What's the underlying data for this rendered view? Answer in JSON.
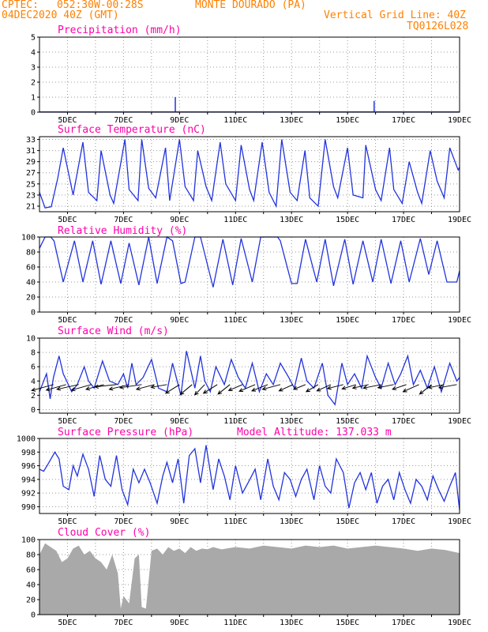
{
  "header": {
    "source": "CPTEC:",
    "coords": "052:30W-00:28S",
    "location": "MONTE DOURADO (PA)",
    "date": "04DEC2020 40Z (GMT)",
    "grid_note": "Vertical Grid Line: 40Z",
    "code": "TQ0126L028"
  },
  "colors": {
    "header": "#ff8000",
    "title": "#ff00aa",
    "line": "#2233dd",
    "cloud": "#a9a9a9",
    "wind_arrow": "#000000"
  },
  "x_labels": [
    "5DEC",
    "7DEC",
    "9DEC",
    "11DEC",
    "13DEC",
    "15DEC",
    "17DEC",
    "19DEC"
  ],
  "chart_data": [
    {
      "type": "bar",
      "title": "Precipitation (mm/h)",
      "ylim": [
        0,
        5
      ],
      "yticks": [
        0,
        1,
        2,
        3,
        4,
        5
      ],
      "grid": true,
      "spikes": [
        {
          "day": 5.45,
          "value": 0.05
        },
        {
          "day": 7.9,
          "value": 0.03
        },
        {
          "day": 8.85,
          "value": 1.0
        },
        {
          "day": 10.2,
          "value": 0.03
        },
        {
          "day": 12.9,
          "value": 0.04
        },
        {
          "day": 15.95,
          "value": 0.75
        },
        {
          "day": 16.6,
          "value": 0.03
        }
      ]
    },
    {
      "type": "line",
      "title": "Surface Temperature (nC)",
      "ylim": [
        20,
        33.5
      ],
      "yticks": [
        21,
        23,
        25,
        27,
        29,
        31,
        33
      ],
      "grid": true,
      "series": [
        {
          "x": [
            4.0,
            4.2,
            4.42,
            4.65,
            4.85,
            5.2,
            5.55,
            5.75,
            6.05,
            6.2,
            6.52,
            6.65,
            7.05,
            7.2,
            7.52,
            7.65,
            7.9,
            8.15,
            8.5,
            8.65,
            9.0,
            9.2,
            9.5,
            9.65,
            9.95,
            10.15,
            10.45,
            10.65,
            11.0,
            11.2,
            11.5,
            11.65,
            11.95,
            12.2,
            12.45,
            12.65,
            12.95,
            13.2,
            13.48,
            13.65,
            13.95,
            14.2,
            14.5,
            14.65,
            15.0,
            15.2,
            15.55,
            15.65,
            16.0,
            16.2,
            16.5,
            16.65,
            16.95,
            17.2,
            17.5,
            17.65,
            17.95,
            18.2,
            18.45,
            18.65,
            18.95,
            19.0
          ],
          "y": [
            23.5,
            20.7,
            20.9,
            26,
            31.5,
            23,
            32.5,
            23.5,
            22,
            31,
            23,
            21.5,
            33,
            24,
            22,
            33,
            24.2,
            22.5,
            31.5,
            22,
            33,
            24.5,
            22,
            31,
            24.5,
            22,
            32.5,
            25,
            22,
            32,
            24,
            22,
            32.5,
            23.5,
            21,
            33,
            23.5,
            22,
            31,
            22.5,
            21,
            33,
            24.5,
            22.5,
            31.5,
            23,
            22.5,
            32,
            24,
            22,
            31.5,
            24,
            21.5,
            29,
            23.5,
            21.5,
            31,
            25.5,
            22.5,
            31.5,
            27.5,
            28
          ]
        }
      ]
    },
    {
      "type": "line",
      "title": "Relative Humidity (%)",
      "ylim": [
        0,
        100
      ],
      "yticks": [
        0,
        20,
        40,
        60,
        80,
        100
      ],
      "grid": true,
      "series": [
        {
          "x": [
            4.0,
            4.2,
            4.4,
            4.52,
            4.85,
            5.25,
            5.55,
            5.9,
            6.2,
            6.55,
            6.9,
            7.2,
            7.55,
            7.9,
            8.2,
            8.55,
            8.75,
            9.05,
            9.2,
            9.55,
            9.75,
            10.2,
            10.55,
            10.9,
            11.2,
            11.6,
            11.9,
            12.2,
            12.5,
            12.6,
            13.0,
            13.2,
            13.5,
            13.9,
            14.2,
            14.5,
            14.9,
            15.2,
            15.55,
            15.9,
            16.2,
            16.55,
            16.9,
            17.2,
            17.6,
            17.9,
            18.2,
            18.55,
            18.9,
            19.0
          ],
          "y": [
            85,
            100,
            100,
            95,
            40,
            95,
            40,
            95,
            37,
            95,
            38,
            92,
            36,
            100,
            38,
            100,
            95,
            38,
            40,
            100,
            100,
            33,
            97,
            36,
            98,
            40,
            100,
            100,
            100,
            95,
            38,
            38,
            97,
            40,
            97,
            35,
            97,
            37,
            95,
            40,
            97,
            38,
            95,
            40,
            98,
            50,
            95,
            40,
            40,
            55
          ]
        }
      ]
    },
    {
      "type": "line",
      "title": "Surface Wind (m/s)",
      "ylim": [
        -0.5,
        10
      ],
      "yticks": [
        0,
        2,
        4,
        6,
        8,
        10
      ],
      "grid": true,
      "series": [
        {
          "x": [
            4.0,
            4.25,
            4.38,
            4.5,
            4.7,
            4.85,
            5.15,
            5.35,
            5.6,
            5.75,
            5.95,
            6.25,
            6.5,
            6.8,
            7.0,
            7.15,
            7.3,
            7.45,
            7.7,
            8.0,
            8.25,
            8.55,
            8.75,
            9.05,
            9.25,
            9.55,
            9.75,
            9.9,
            10.1,
            10.3,
            10.6,
            10.85,
            11.1,
            11.35,
            11.6,
            11.85,
            12.1,
            12.35,
            12.6,
            12.9,
            13.1,
            13.35,
            13.55,
            13.8,
            14.1,
            14.3,
            14.55,
            14.8,
            15.0,
            15.25,
            15.5,
            15.7,
            16.0,
            16.2,
            16.45,
            16.7,
            16.9,
            17.15,
            17.35,
            17.6,
            17.85,
            18.1,
            18.35,
            18.65,
            18.9,
            19.0
          ],
          "y": [
            2.5,
            5,
            1.5,
            4.5,
            7.5,
            5,
            2.5,
            3.5,
            6,
            4,
            3,
            6.8,
            4,
            3.5,
            5,
            3,
            6.5,
            3.5,
            4.5,
            7,
            3,
            2.5,
            6.5,
            2,
            8.2,
            3,
            7.5,
            4,
            2.5,
            6,
            3.5,
            7,
            4.5,
            3,
            6.5,
            2.5,
            5,
            3.5,
            6.5,
            4.5,
            3,
            7.2,
            4,
            3,
            6.5,
            2,
            0.7,
            6.5,
            3.5,
            5,
            3,
            7.5,
            4.5,
            3,
            6.5,
            3.5,
            5,
            7.5,
            3.5,
            5.5,
            3,
            6,
            2.5,
            6.5,
            4,
            4.5
          ]
        }
      ],
      "wind_vectors": [
        {
          "day": 4.5,
          "u": -5.5,
          "v": -1.5
        },
        {
          "day": 4.95,
          "u": -5,
          "v": -1.4
        },
        {
          "day": 5.4,
          "u": -5.5,
          "v": -1.2
        },
        {
          "day": 5.85,
          "u": -5,
          "v": -1.4
        },
        {
          "day": 6.3,
          "u": -4.5,
          "v": -1.2
        },
        {
          "day": 6.75,
          "u": -5.5,
          "v": -0.6
        },
        {
          "day": 7.2,
          "u": -5,
          "v": -1.2
        },
        {
          "day": 7.65,
          "u": -5.5,
          "v": -0.8
        },
        {
          "day": 8.1,
          "u": -4.5,
          "v": -1.2
        },
        {
          "day": 8.55,
          "u": -4,
          "v": -0.7
        },
        {
          "day": 9.0,
          "u": -3.5,
          "v": -2.2
        },
        {
          "day": 9.45,
          "u": -3,
          "v": -2.5
        },
        {
          "day": 9.9,
          "u": -2.5,
          "v": -2.6
        },
        {
          "day": 10.35,
          "u": -3.5,
          "v": -2.2
        },
        {
          "day": 10.8,
          "u": -3,
          "v": -2.4
        },
        {
          "day": 11.25,
          "u": -3.5,
          "v": -1.5
        },
        {
          "day": 11.7,
          "u": -4,
          "v": -1.7
        },
        {
          "day": 12.15,
          "u": -4,
          "v": -1.6
        },
        {
          "day": 12.6,
          "u": -4.5,
          "v": -1.2
        },
        {
          "day": 13.05,
          "u": -3.5,
          "v": -1.6
        },
        {
          "day": 13.5,
          "u": -3,
          "v": -1.2
        },
        {
          "day": 13.95,
          "u": -3,
          "v": -1.8
        },
        {
          "day": 14.4,
          "u": -3.5,
          "v": -1.6
        },
        {
          "day": 14.85,
          "u": -4,
          "v": -1
        },
        {
          "day": 15.3,
          "u": -3.5,
          "v": -1.1
        },
        {
          "day": 15.75,
          "u": -4,
          "v": -0.9
        },
        {
          "day": 16.2,
          "u": -4.5,
          "v": -0.9
        },
        {
          "day": 16.65,
          "u": -4,
          "v": -0.8
        },
        {
          "day": 17.1,
          "u": -3.5,
          "v": -1.2
        },
        {
          "day": 17.55,
          "u": -4,
          "v": -1.8
        },
        {
          "day": 18.0,
          "u": -3,
          "v": -2.4
        },
        {
          "day": 18.45,
          "u": -4,
          "v": -0.8
        },
        {
          "day": 18.9,
          "u": -4.5,
          "v": -0.8
        }
      ]
    },
    {
      "type": "line",
      "title": "Surface Pressure (hPa)",
      "annotation": "Model Altitude: 137.033 m",
      "ylim": [
        989,
        1000
      ],
      "yticks": [
        990,
        992,
        994,
        996,
        998,
        1000
      ],
      "grid": true,
      "series": [
        {
          "x": [
            4.0,
            4.15,
            4.3,
            4.55,
            4.7,
            4.85,
            5.05,
            5.2,
            5.35,
            5.55,
            5.75,
            5.95,
            6.15,
            6.35,
            6.55,
            6.75,
            6.95,
            7.15,
            7.35,
            7.55,
            7.75,
            7.95,
            8.2,
            8.4,
            8.55,
            8.75,
            8.95,
            9.15,
            9.35,
            9.55,
            9.75,
            9.95,
            10.2,
            10.4,
            10.6,
            10.8,
            11.0,
            11.25,
            11.45,
            11.7,
            11.9,
            12.15,
            12.35,
            12.55,
            12.75,
            12.95,
            13.15,
            13.35,
            13.55,
            13.8,
            14.0,
            14.2,
            14.4,
            14.6,
            14.85,
            15.05,
            15.25,
            15.45,
            15.65,
            15.85,
            16.05,
            16.25,
            16.45,
            16.65,
            16.85,
            17.05,
            17.25,
            17.45,
            17.65,
            17.85,
            18.05,
            18.25,
            18.45,
            18.65,
            18.85,
            19.0
          ],
          "y": [
            995.5,
            995.2,
            996.2,
            998,
            997,
            993,
            992.5,
            996,
            994.5,
            997.7,
            995.5,
            991.5,
            997.5,
            994,
            993,
            997.5,
            992.5,
            990.3,
            995.5,
            993.5,
            995.5,
            993.5,
            990.5,
            994.5,
            996.5,
            993.5,
            997,
            990.5,
            997.5,
            998.5,
            993.5,
            999,
            992.5,
            997,
            994.5,
            991,
            996,
            992,
            993.5,
            995.5,
            991,
            997,
            993,
            991,
            995,
            994,
            991.5,
            994,
            995.5,
            991,
            996,
            993,
            992,
            997,
            995,
            989.8,
            993.5,
            995,
            992.5,
            995,
            990.5,
            993,
            994,
            991,
            995,
            992.5,
            990.5,
            994,
            993,
            991,
            994.5,
            992.5,
            990.8,
            993,
            995,
            989.5
          ]
        }
      ]
    },
    {
      "type": "area",
      "title": "Cloud Cover (%)",
      "ylim": [
        0,
        100
      ],
      "yticks": [
        0,
        20,
        40,
        60,
        80,
        100
      ],
      "grid": true,
      "series": [
        {
          "x": [
            4.0,
            4.2,
            4.4,
            4.6,
            4.8,
            5.0,
            5.2,
            5.4,
            5.6,
            5.8,
            6.0,
            6.2,
            6.4,
            6.6,
            6.8,
            6.9,
            7.0,
            7.2,
            7.4,
            7.55,
            7.65,
            7.8,
            8.0,
            8.2,
            8.4,
            8.6,
            8.8,
            9.0,
            9.2,
            9.4,
            9.6,
            9.8,
            10.0,
            10.2,
            10.5,
            11.0,
            11.5,
            12.0,
            12.5,
            13.0,
            13.5,
            14.0,
            14.5,
            15.0,
            15.5,
            16.0,
            16.5,
            17.0,
            17.5,
            18.0,
            18.5,
            19.0
          ],
          "y": [
            80,
            95,
            90,
            85,
            70,
            75,
            88,
            92,
            80,
            85,
            75,
            70,
            60,
            80,
            55,
            8,
            25,
            15,
            75,
            80,
            10,
            8,
            85,
            88,
            80,
            90,
            85,
            88,
            82,
            90,
            85,
            88,
            87,
            90,
            87,
            90,
            88,
            92,
            90,
            88,
            92,
            90,
            92,
            88,
            90,
            92,
            90,
            88,
            85,
            88,
            86,
            82
          ]
        }
      ]
    }
  ]
}
